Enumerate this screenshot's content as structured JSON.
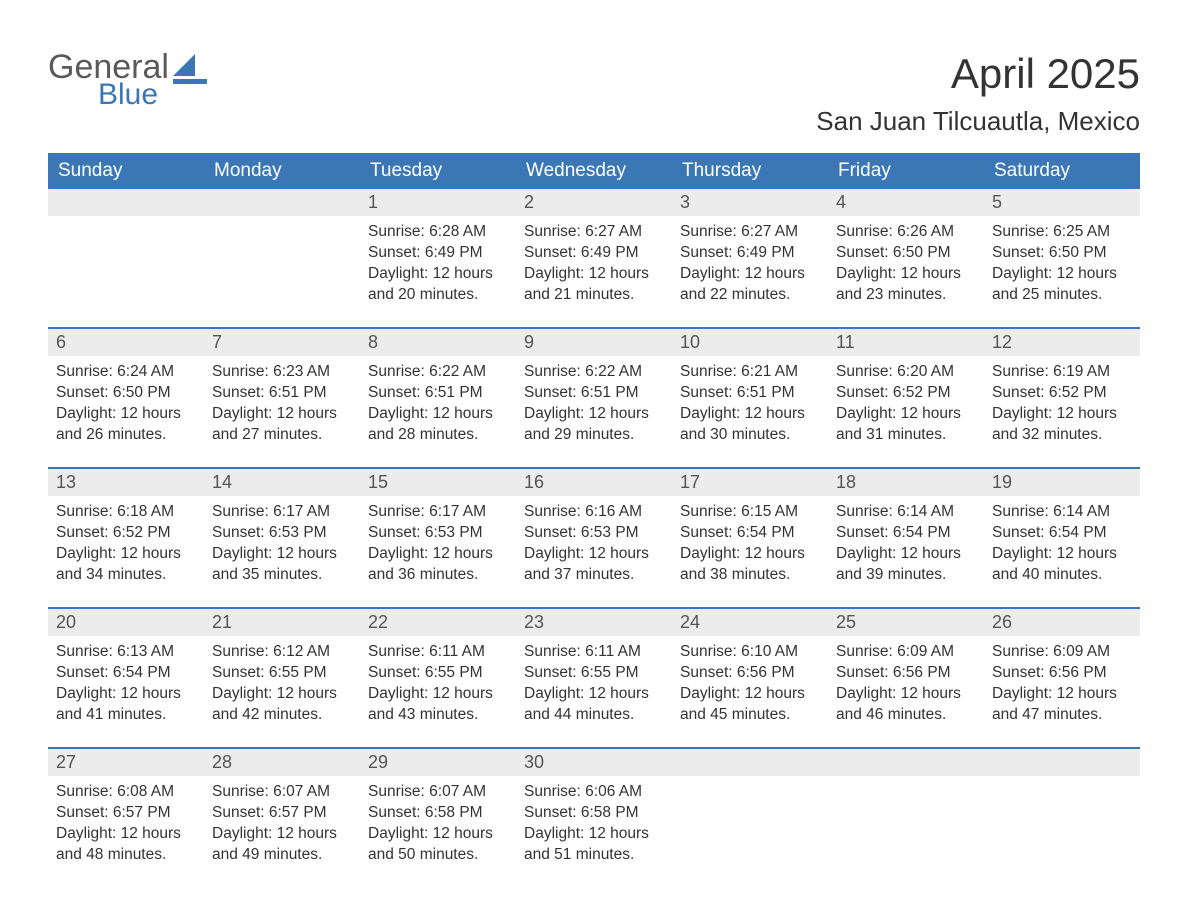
{
  "brand": {
    "word1": "General",
    "word2": "Blue"
  },
  "title": "April 2025",
  "location": "San Juan Tilcuautla, Mexico",
  "colors": {
    "header_blue": "#3b77b5",
    "daynum_bg": "#ececec",
    "text": "#333333",
    "logo_gray": "#5a5a5a"
  },
  "weekdays": [
    "Sunday",
    "Monday",
    "Tuesday",
    "Wednesday",
    "Thursday",
    "Friday",
    "Saturday"
  ],
  "labels": {
    "sunrise": "Sunrise:",
    "sunset": "Sunset:",
    "daylight": "Daylight:"
  },
  "calendar": {
    "first_weekday_index": 2,
    "num_days": 30,
    "days": [
      {
        "n": 1,
        "sunrise": "6:28 AM",
        "sunset": "6:49 PM",
        "daylight": "12 hours and 20 minutes."
      },
      {
        "n": 2,
        "sunrise": "6:27 AM",
        "sunset": "6:49 PM",
        "daylight": "12 hours and 21 minutes."
      },
      {
        "n": 3,
        "sunrise": "6:27 AM",
        "sunset": "6:49 PM",
        "daylight": "12 hours and 22 minutes."
      },
      {
        "n": 4,
        "sunrise": "6:26 AM",
        "sunset": "6:50 PM",
        "daylight": "12 hours and 23 minutes."
      },
      {
        "n": 5,
        "sunrise": "6:25 AM",
        "sunset": "6:50 PM",
        "daylight": "12 hours and 25 minutes."
      },
      {
        "n": 6,
        "sunrise": "6:24 AM",
        "sunset": "6:50 PM",
        "daylight": "12 hours and 26 minutes."
      },
      {
        "n": 7,
        "sunrise": "6:23 AM",
        "sunset": "6:51 PM",
        "daylight": "12 hours and 27 minutes."
      },
      {
        "n": 8,
        "sunrise": "6:22 AM",
        "sunset": "6:51 PM",
        "daylight": "12 hours and 28 minutes."
      },
      {
        "n": 9,
        "sunrise": "6:22 AM",
        "sunset": "6:51 PM",
        "daylight": "12 hours and 29 minutes."
      },
      {
        "n": 10,
        "sunrise": "6:21 AM",
        "sunset": "6:51 PM",
        "daylight": "12 hours and 30 minutes."
      },
      {
        "n": 11,
        "sunrise": "6:20 AM",
        "sunset": "6:52 PM",
        "daylight": "12 hours and 31 minutes."
      },
      {
        "n": 12,
        "sunrise": "6:19 AM",
        "sunset": "6:52 PM",
        "daylight": "12 hours and 32 minutes."
      },
      {
        "n": 13,
        "sunrise": "6:18 AM",
        "sunset": "6:52 PM",
        "daylight": "12 hours and 34 minutes."
      },
      {
        "n": 14,
        "sunrise": "6:17 AM",
        "sunset": "6:53 PM",
        "daylight": "12 hours and 35 minutes."
      },
      {
        "n": 15,
        "sunrise": "6:17 AM",
        "sunset": "6:53 PM",
        "daylight": "12 hours and 36 minutes."
      },
      {
        "n": 16,
        "sunrise": "6:16 AM",
        "sunset": "6:53 PM",
        "daylight": "12 hours and 37 minutes."
      },
      {
        "n": 17,
        "sunrise": "6:15 AM",
        "sunset": "6:54 PM",
        "daylight": "12 hours and 38 minutes."
      },
      {
        "n": 18,
        "sunrise": "6:14 AM",
        "sunset": "6:54 PM",
        "daylight": "12 hours and 39 minutes."
      },
      {
        "n": 19,
        "sunrise": "6:14 AM",
        "sunset": "6:54 PM",
        "daylight": "12 hours and 40 minutes."
      },
      {
        "n": 20,
        "sunrise": "6:13 AM",
        "sunset": "6:54 PM",
        "daylight": "12 hours and 41 minutes."
      },
      {
        "n": 21,
        "sunrise": "6:12 AM",
        "sunset": "6:55 PM",
        "daylight": "12 hours and 42 minutes."
      },
      {
        "n": 22,
        "sunrise": "6:11 AM",
        "sunset": "6:55 PM",
        "daylight": "12 hours and 43 minutes."
      },
      {
        "n": 23,
        "sunrise": "6:11 AM",
        "sunset": "6:55 PM",
        "daylight": "12 hours and 44 minutes."
      },
      {
        "n": 24,
        "sunrise": "6:10 AM",
        "sunset": "6:56 PM",
        "daylight": "12 hours and 45 minutes."
      },
      {
        "n": 25,
        "sunrise": "6:09 AM",
        "sunset": "6:56 PM",
        "daylight": "12 hours and 46 minutes."
      },
      {
        "n": 26,
        "sunrise": "6:09 AM",
        "sunset": "6:56 PM",
        "daylight": "12 hours and 47 minutes."
      },
      {
        "n": 27,
        "sunrise": "6:08 AM",
        "sunset": "6:57 PM",
        "daylight": "12 hours and 48 minutes."
      },
      {
        "n": 28,
        "sunrise": "6:07 AM",
        "sunset": "6:57 PM",
        "daylight": "12 hours and 49 minutes."
      },
      {
        "n": 29,
        "sunrise": "6:07 AM",
        "sunset": "6:58 PM",
        "daylight": "12 hours and 50 minutes."
      },
      {
        "n": 30,
        "sunrise": "6:06 AM",
        "sunset": "6:58 PM",
        "daylight": "12 hours and 51 minutes."
      }
    ]
  }
}
